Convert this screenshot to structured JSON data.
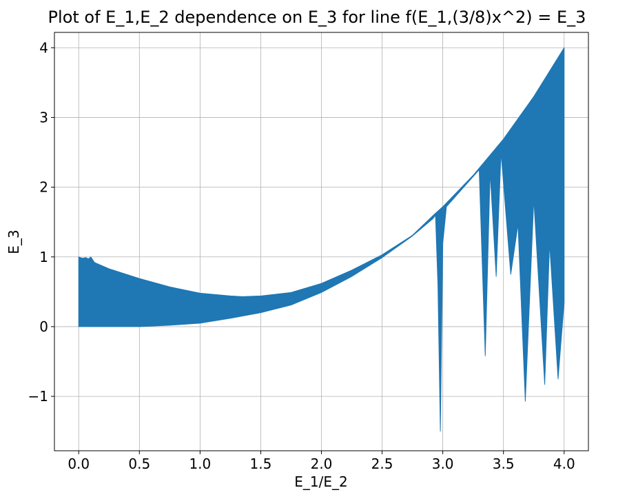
{
  "chart_data": {
    "type": "area",
    "title": "Plot of E_1,E_2 dependence on E_3 for line f(E_1,(3/8)x^2) = E_3",
    "xlabel": "E_1/E_2",
    "ylabel": "E_3",
    "xlim": [
      -0.2,
      4.2
    ],
    "ylim": [
      -1.78,
      4.22
    ],
    "xticks": [
      0.0,
      0.5,
      1.0,
      1.5,
      2.0,
      2.5,
      3.0,
      3.5,
      4.0
    ],
    "xtick_labels": [
      "0.0",
      "0.5",
      "1.0",
      "1.5",
      "2.0",
      "2.5",
      "3.0",
      "3.5",
      "4.0"
    ],
    "yticks": [
      -1,
      0,
      1,
      2,
      3,
      4
    ],
    "ytick_labels": [
      "−1",
      "0",
      "1",
      "2",
      "3",
      "4"
    ],
    "grid": true,
    "fill_color": "#1f77b4",
    "series": [
      {
        "upper": [
          [
            0.0,
            1.0
          ],
          [
            0.03,
            0.98
          ],
          [
            0.06,
            0.99
          ],
          [
            0.08,
            0.97
          ],
          [
            0.1,
            1.0
          ],
          [
            0.13,
            0.92
          ],
          [
            0.25,
            0.83
          ],
          [
            0.5,
            0.69
          ],
          [
            0.75,
            0.57
          ],
          [
            1.0,
            0.48
          ],
          [
            1.25,
            0.44
          ],
          [
            1.35,
            0.43
          ],
          [
            1.5,
            0.44
          ],
          [
            1.75,
            0.49
          ],
          [
            2.0,
            0.62
          ],
          [
            2.25,
            0.81
          ],
          [
            2.5,
            1.03
          ],
          [
            2.75,
            1.31
          ],
          [
            2.93,
            1.61
          ],
          [
            3.0,
            1.72
          ],
          [
            3.25,
            2.17
          ],
          [
            3.5,
            2.69
          ],
          [
            3.75,
            3.3
          ],
          [
            4.0,
            4.0
          ]
        ],
        "lower": [
          [
            0.0,
            0.0
          ],
          [
            0.25,
            0.0
          ],
          [
            0.5,
            0.0
          ],
          [
            0.75,
            0.02
          ],
          [
            1.0,
            0.05
          ],
          [
            1.25,
            0.12
          ],
          [
            1.5,
            0.2
          ],
          [
            1.75,
            0.31
          ],
          [
            2.0,
            0.49
          ],
          [
            2.25,
            0.72
          ],
          [
            2.5,
            0.99
          ],
          [
            2.75,
            1.3
          ],
          [
            2.92,
            1.55
          ],
          [
            2.94,
            1.6
          ],
          [
            2.96,
            0.6
          ],
          [
            2.98,
            -1.5
          ],
          [
            3.0,
            1.2
          ],
          [
            3.03,
            1.72
          ],
          [
            3.3,
            2.25
          ],
          [
            3.35,
            -0.42
          ],
          [
            3.39,
            2.22
          ],
          [
            3.44,
            0.72
          ],
          [
            3.48,
            2.5
          ],
          [
            3.56,
            0.75
          ],
          [
            3.62,
            1.47
          ],
          [
            3.68,
            -1.07
          ],
          [
            3.75,
            1.83
          ],
          [
            3.84,
            -0.83
          ],
          [
            3.88,
            1.2
          ],
          [
            3.95,
            -0.75
          ],
          [
            4.0,
            0.35
          ]
        ]
      }
    ]
  }
}
